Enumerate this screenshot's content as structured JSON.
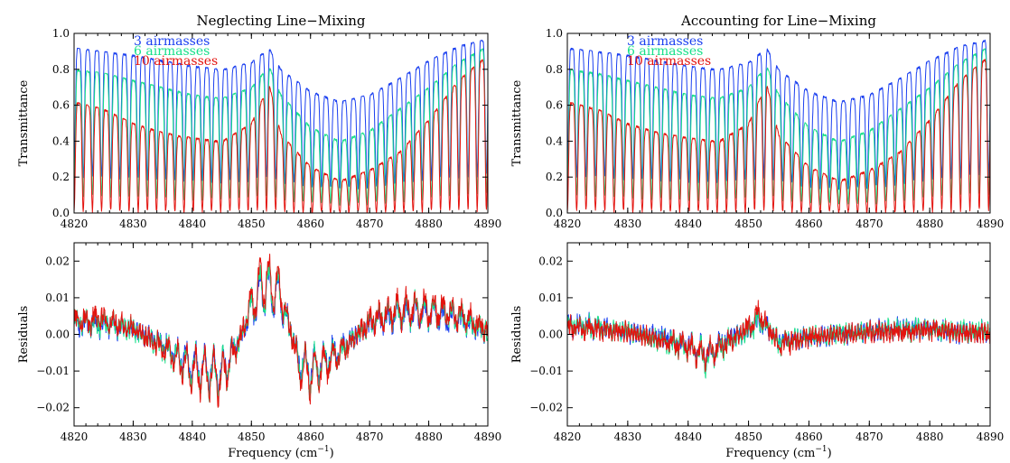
{
  "figure": {
    "colors": {
      "three": "#1a3ff0",
      "six": "#18e08a",
      "ten": "#e3140f",
      "axes": "#000000"
    }
  },
  "chart_data": [
    {
      "id": "tl",
      "type": "line",
      "title": "Neglecting Line−Mixing",
      "xlabel": "",
      "ylabel": "Transmittance",
      "xlim": [
        4820,
        4890
      ],
      "ylim": [
        0.0,
        1.0
      ],
      "xticks": [
        "4820",
        "4830",
        "4840",
        "4850",
        "4860",
        "4870",
        "4880",
        "4890"
      ],
      "yticks": [
        "0.0",
        "0.2",
        "0.4",
        "0.6",
        "0.8",
        "1.0"
      ],
      "legend": {
        "position": "top-left",
        "entries": [
          "3 airmasses",
          "6 airmasses",
          "10 airmasses"
        ]
      },
      "series": [
        {
          "name": "3 airmasses",
          "color": "#1a3ff0",
          "x": [
            4820,
            4825,
            4830,
            4835,
            4840,
            4845,
            4850,
            4853,
            4855,
            4860,
            4865,
            4870,
            4875,
            4880,
            4885,
            4890
          ],
          "y": [
            0.92,
            0.9,
            0.88,
            0.85,
            0.82,
            0.8,
            0.84,
            0.92,
            0.8,
            0.68,
            0.62,
            0.66,
            0.75,
            0.85,
            0.93,
            0.97
          ]
        },
        {
          "name": "6 airmasses",
          "color": "#18e08a",
          "x": [
            4820,
            4825,
            4830,
            4835,
            4840,
            4845,
            4850,
            4853,
            4855,
            4860,
            4865,
            4870,
            4875,
            4880,
            4885,
            4890
          ],
          "y": [
            0.8,
            0.78,
            0.74,
            0.7,
            0.66,
            0.64,
            0.7,
            0.82,
            0.66,
            0.48,
            0.4,
            0.46,
            0.58,
            0.7,
            0.84,
            0.93
          ]
        },
        {
          "name": "10 airmasses",
          "color": "#e3140f",
          "x": [
            4820,
            4825,
            4830,
            4835,
            4840,
            4845,
            4850,
            4853,
            4855,
            4860,
            4865,
            4870,
            4875,
            4880,
            4885,
            4890
          ],
          "y": [
            0.62,
            0.58,
            0.5,
            0.45,
            0.42,
            0.4,
            0.5,
            0.72,
            0.44,
            0.26,
            0.18,
            0.24,
            0.34,
            0.52,
            0.74,
            0.88
          ]
        }
      ]
    },
    {
      "id": "tr",
      "type": "line",
      "title": "Accounting for Line−Mixing",
      "xlabel": "",
      "ylabel": "Transmittance",
      "xlim": [
        4820,
        4890
      ],
      "ylim": [
        0.0,
        1.0
      ],
      "xticks": [
        "4820",
        "4830",
        "4840",
        "4850",
        "4860",
        "4870",
        "4880",
        "4890"
      ],
      "yticks": [
        "0.0",
        "0.2",
        "0.4",
        "0.6",
        "0.8",
        "1.0"
      ],
      "legend": {
        "position": "top-left",
        "entries": [
          "3 airmasses",
          "6 airmasses",
          "10 airmasses"
        ]
      },
      "series": [
        {
          "name": "3 airmasses",
          "color": "#1a3ff0",
          "x": [
            4820,
            4825,
            4830,
            4835,
            4840,
            4845,
            4850,
            4853,
            4855,
            4860,
            4865,
            4870,
            4875,
            4880,
            4885,
            4890
          ],
          "y": [
            0.92,
            0.9,
            0.88,
            0.85,
            0.82,
            0.8,
            0.84,
            0.92,
            0.8,
            0.68,
            0.62,
            0.66,
            0.75,
            0.85,
            0.93,
            0.97
          ]
        },
        {
          "name": "6 airmasses",
          "color": "#18e08a",
          "x": [
            4820,
            4825,
            4830,
            4835,
            4840,
            4845,
            4850,
            4853,
            4855,
            4860,
            4865,
            4870,
            4875,
            4880,
            4885,
            4890
          ],
          "y": [
            0.8,
            0.78,
            0.74,
            0.7,
            0.66,
            0.64,
            0.7,
            0.82,
            0.66,
            0.48,
            0.4,
            0.46,
            0.58,
            0.7,
            0.84,
            0.93
          ]
        },
        {
          "name": "10 airmasses",
          "color": "#e3140f",
          "x": [
            4820,
            4825,
            4830,
            4835,
            4840,
            4845,
            4850,
            4853,
            4855,
            4860,
            4865,
            4870,
            4875,
            4880,
            4885,
            4890
          ],
          "y": [
            0.62,
            0.58,
            0.5,
            0.45,
            0.42,
            0.4,
            0.5,
            0.72,
            0.44,
            0.26,
            0.18,
            0.24,
            0.34,
            0.52,
            0.74,
            0.88
          ]
        }
      ]
    },
    {
      "id": "bl",
      "type": "line",
      "title": "",
      "xlabel": "Frequency (cm",
      "xlabel_sup": "−1",
      "xlabel_close": ")",
      "ylabel": "Residuals",
      "xlim": [
        4820,
        4890
      ],
      "ylim": [
        -0.025,
        0.025
      ],
      "xticks": [
        "4820",
        "4830",
        "4840",
        "4850",
        "4860",
        "4870",
        "4880",
        "4890"
      ],
      "yticks": [
        "−0.02",
        "−0.01",
        "0.00",
        "0.01",
        "0.02"
      ],
      "series": [
        {
          "name": "3 airmasses",
          "color": "#1a3ff0",
          "x": [
            4820,
            4825,
            4830,
            4835,
            4840,
            4845,
            4848,
            4850,
            4852,
            4855,
            4858,
            4860,
            4865,
            4870,
            4875,
            4880,
            4885,
            4890
          ],
          "y": [
            0.004,
            0.004,
            0.002,
            -0.004,
            -0.012,
            -0.015,
            -0.002,
            0.01,
            0.018,
            0.014,
            -0.01,
            -0.014,
            -0.006,
            0.004,
            0.008,
            0.008,
            0.006,
            0.001
          ]
        },
        {
          "name": "6 airmasses",
          "color": "#18e08a",
          "x": [
            4820,
            4825,
            4830,
            4835,
            4840,
            4845,
            4848,
            4850,
            4852,
            4855,
            4858,
            4860,
            4865,
            4870,
            4875,
            4880,
            4885,
            4890
          ],
          "y": [
            0.005,
            0.005,
            0.002,
            -0.005,
            -0.013,
            -0.016,
            -0.002,
            0.011,
            0.019,
            0.015,
            -0.011,
            -0.015,
            -0.007,
            0.005,
            0.009,
            0.009,
            0.007,
            0.001
          ]
        },
        {
          "name": "10 airmasses",
          "color": "#e3140f",
          "x": [
            4820,
            4825,
            4830,
            4835,
            4840,
            4845,
            4848,
            4850,
            4852,
            4855,
            4858,
            4860,
            4865,
            4870,
            4875,
            4880,
            4885,
            4890
          ],
          "y": [
            0.005,
            0.006,
            0.002,
            -0.005,
            -0.014,
            -0.017,
            -0.002,
            0.012,
            0.022,
            0.016,
            -0.012,
            -0.016,
            -0.007,
            0.005,
            0.01,
            0.01,
            0.008,
            0.002
          ]
        }
      ]
    },
    {
      "id": "br",
      "type": "line",
      "title": "",
      "xlabel": "Frequency (cm",
      "xlabel_sup": "−1",
      "xlabel_close": ")",
      "ylabel": "Residuals",
      "xlim": [
        4820,
        4890
      ],
      "ylim": [
        -0.025,
        0.025
      ],
      "xticks": [
        "4820",
        "4830",
        "4840",
        "4850",
        "4860",
        "4870",
        "4880",
        "4890"
      ],
      "yticks": [
        "−0.02",
        "−0.01",
        "0.00",
        "0.01",
        "0.02"
      ],
      "series": [
        {
          "name": "3 airmasses",
          "color": "#1a3ff0",
          "x": [
            4820,
            4825,
            4830,
            4835,
            4840,
            4843,
            4846,
            4850,
            4852,
            4855,
            4860,
            4865,
            4870,
            4875,
            4880,
            4885,
            4890
          ],
          "y": [
            0.003,
            0.003,
            0.001,
            -0.001,
            -0.004,
            -0.008,
            -0.003,
            0.002,
            0.006,
            -0.003,
            -0.001,
            0.0,
            0.001,
            0.002,
            0.002,
            0.001,
            0.001
          ]
        },
        {
          "name": "6 airmasses",
          "color": "#18e08a",
          "x": [
            4820,
            4825,
            4830,
            4835,
            4840,
            4843,
            4846,
            4850,
            4852,
            4855,
            4860,
            4865,
            4870,
            4875,
            4880,
            4885,
            4890
          ],
          "y": [
            0.003,
            0.003,
            0.001,
            -0.002,
            -0.005,
            -0.009,
            -0.004,
            0.002,
            0.006,
            -0.003,
            -0.001,
            0.0,
            0.001,
            0.002,
            0.002,
            0.001,
            0.001
          ]
        },
        {
          "name": "10 airmasses",
          "color": "#e3140f",
          "x": [
            4820,
            4825,
            4830,
            4835,
            4840,
            4843,
            4846,
            4850,
            4852,
            4855,
            4860,
            4865,
            4870,
            4875,
            4880,
            4885,
            4890
          ],
          "y": [
            0.003,
            0.002,
            0.001,
            -0.002,
            -0.005,
            -0.008,
            -0.004,
            0.003,
            0.008,
            -0.004,
            -0.001,
            0.0,
            0.001,
            0.001,
            0.002,
            0.001,
            0.0
          ]
        }
      ]
    }
  ]
}
